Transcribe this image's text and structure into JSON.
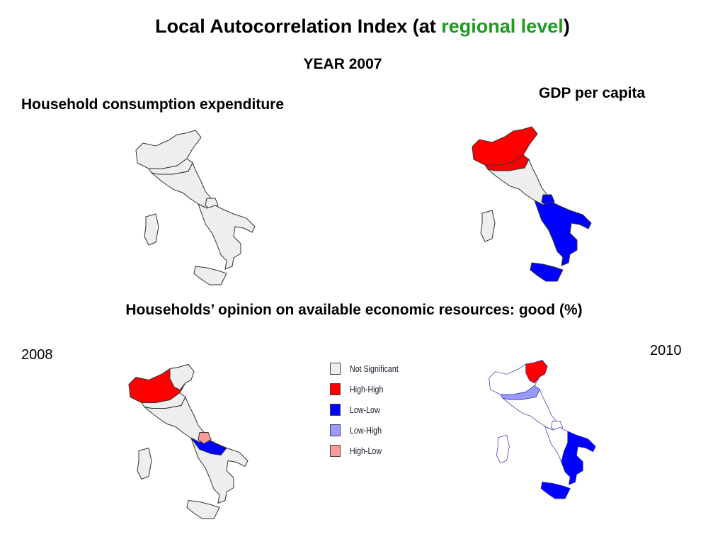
{
  "title": {
    "main": "Local Autocorrelation Index (at ",
    "highlight": "regional level",
    "close": ")"
  },
  "year": "YEAR 2007",
  "labels": {
    "household_consumption": "Household consumption expenditure",
    "gdp_per_capita": "GDP per capita",
    "households_opinion": "Households’ opinion on available economic resources: good  (%)",
    "year_left": "2008",
    "year_right": "2010"
  },
  "legend": [
    {
      "label": "Not Significant",
      "color": "#eeeeee"
    },
    {
      "label": "High-High",
      "color": "#ff0000"
    },
    {
      "label": "Low-Low",
      "color": "#0000ff"
    },
    {
      "label": "Low-High",
      "color": "#9999ff"
    },
    {
      "label": "High-Low",
      "color": "#ff9999"
    }
  ],
  "colors": {
    "accent": "#1f9a1f",
    "not_significant": "#eeeeee",
    "high_high": "#ff0000",
    "low_low": "#0000ff",
    "low_high": "#9999ff",
    "high_low": "#ff9999"
  },
  "maps": [
    {
      "id": "household-consumption-2007",
      "north": "not_significant",
      "center": "not_significant",
      "south": "not_significant"
    },
    {
      "id": "gdp-per-capita-2007",
      "north": "high_high",
      "center": "not_significant",
      "south": "low_low"
    },
    {
      "id": "opinion-2008",
      "north": "high_high",
      "center": "not_significant",
      "south": "low_low",
      "molise": "high_low"
    },
    {
      "id": "opinion-2010",
      "north": "not_significant",
      "veneto": "high_high",
      "emilia": "low_high",
      "south": "low_low"
    }
  ]
}
